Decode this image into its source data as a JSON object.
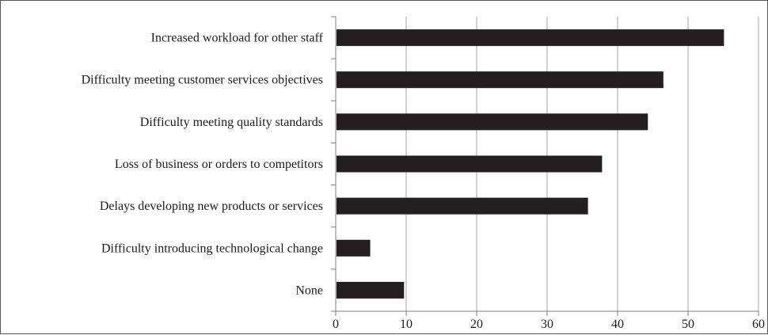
{
  "colors": {
    "bar": "#231f20",
    "gridline": "#a6a6a6",
    "axis": "#7f7f7f",
    "border": "#555555",
    "text": "#1a1a1a"
  },
  "chart_data": {
    "type": "bar",
    "orientation": "horizontal",
    "title": "",
    "xlabel": "",
    "ylabel": "",
    "categories": [
      "Increased workload for other staff",
      "Difficulty meeting customer services objectives",
      "Difficulty meeting quality standards",
      "Loss of business or orders to competitors",
      "Delays developing new products or services",
      "Difficulty introducing technological change",
      "None"
    ],
    "values": [
      55.1,
      46.5,
      44.3,
      37.8,
      35.8,
      4.9,
      9.7
    ],
    "xlim": [
      0,
      60
    ],
    "x_ticks": [
      "0",
      "10",
      "20",
      "30",
      "40",
      "50",
      "60"
    ],
    "grid": "vertical",
    "legend": "none"
  }
}
